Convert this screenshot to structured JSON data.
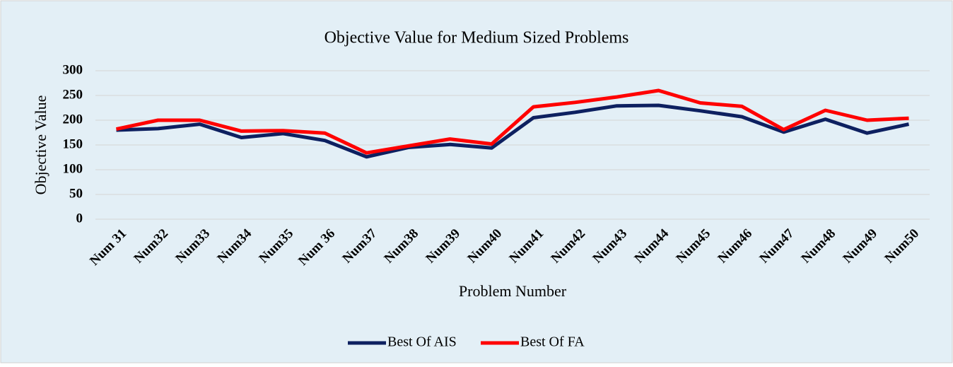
{
  "chart_data": {
    "type": "line",
    "title": "Objective Value for Medium Sized Problems",
    "x_label": "Problem Number",
    "y_label": "Objective Value",
    "categories": [
      "Num 31",
      "Num32",
      "Num33",
      "Num34",
      "Num35",
      "Num 36",
      "Num37",
      "Num38",
      "Num39",
      "Num40",
      "Num41",
      "Num42",
      "Num43",
      "Num44",
      "Num45",
      "Num46",
      "Num47",
      "Num48",
      "Num49",
      "Num50"
    ],
    "series": [
      {
        "name": "Best Of AIS",
        "color": "#0d2060",
        "values": [
          180,
          183,
          192,
          165,
          173,
          159,
          126,
          145,
          151,
          144,
          205,
          216,
          229,
          230,
          219,
          207,
          176,
          202,
          174,
          192
        ]
      },
      {
        "name": "Best Of FA",
        "color": "#ff0000",
        "values": [
          182,
          200,
          200,
          178,
          179,
          174,
          134,
          148,
          162,
          152,
          227,
          236,
          247,
          260,
          235,
          228,
          181,
          220,
          200,
          204
        ]
      }
    ],
    "ylim": [
      0,
      300
    ],
    "yticks": [
      0,
      50,
      100,
      150,
      200,
      250,
      300
    ],
    "grid": true,
    "legend": "bottom"
  }
}
